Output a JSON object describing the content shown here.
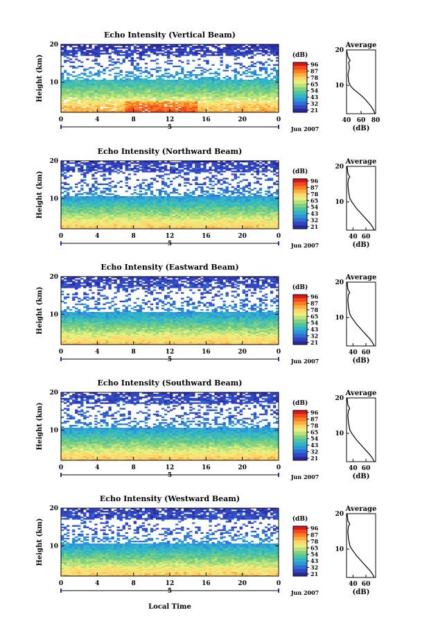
{
  "colorbar": {
    "unit": "(dB)",
    "ticks": [
      "96",
      "87",
      "78",
      "65",
      "54",
      "43",
      "32",
      "21"
    ],
    "colors": [
      "#d7191c",
      "#f24a1e",
      "#f97b22",
      "#fdae3c",
      "#fed66b",
      "#e9ef7e",
      "#b7e27c",
      "#7fd07f",
      "#4fc3a2",
      "#2fb5c8",
      "#2d95d8",
      "#2e6fd6",
      "#3147c4",
      "#2a2aa0"
    ]
  },
  "x_axis": {
    "ticks": [
      "0",
      "4",
      "8",
      "12",
      "16",
      "20",
      "0"
    ],
    "day_label": "5",
    "month_label": "Jun 2007",
    "xlabel": "Local Time"
  },
  "panels": [
    {
      "title": "Echo Intensity (Vertical Beam)",
      "ylabel": "Height (km)",
      "yticks": [
        "20",
        "10"
      ],
      "avg": {
        "title": "Average",
        "xticks": [
          "40",
          "60",
          "80"
        ],
        "xlabel": "(dB)",
        "yticks": [
          "20",
          "10"
        ]
      }
    },
    {
      "title": "Echo Intensity (Northward Beam)",
      "ylabel": "Height (km)",
      "yticks": [
        "20",
        "10"
      ],
      "avg": {
        "title": "Average",
        "xticks": [
          "40",
          "60"
        ],
        "xlabel": "(dB)",
        "yticks": [
          "20",
          "10"
        ]
      }
    },
    {
      "title": "Echo Intensity (Eastward Beam)",
      "ylabel": "Height (km)",
      "yticks": [
        "20",
        "10"
      ],
      "avg": {
        "title": "Average",
        "xticks": [
          "40",
          "60"
        ],
        "xlabel": "(dB)",
        "yticks": [
          "20",
          "10"
        ]
      }
    },
    {
      "title": "Echo Intensity (Southward Beam)",
      "ylabel": "Height (km)",
      "yticks": [
        "20",
        "10"
      ],
      "avg": {
        "title": "Average",
        "xticks": [
          "40",
          "60"
        ],
        "xlabel": "(dB)",
        "yticks": [
          "20",
          "10"
        ]
      }
    },
    {
      "title": "Echo Intensity (Westward Beam)",
      "ylabel": "Height (km)",
      "yticks": [
        "20",
        "10"
      ],
      "avg": {
        "title": "Average",
        "xticks": [
          "40",
          "60"
        ],
        "xlabel": "(dB)",
        "yticks": [
          "20",
          "10"
        ]
      }
    }
  ],
  "chart_data": [
    {
      "type": "heatmap",
      "title": "Echo Intensity (Vertical Beam)",
      "ylabel": "Height (km)",
      "xlabel": "Local Time",
      "x_range_hours": [
        0,
        24
      ],
      "y_range_km": [
        2,
        20
      ],
      "colorbar_range_db": [
        21,
        96
      ],
      "profile_db_by_height": {
        "2": 78,
        "4": 72,
        "6": 62,
        "8": 54,
        "10": 47,
        "12": 40,
        "14": 34,
        "16": 30,
        "18": 28,
        "20": 25
      }
    },
    {
      "type": "line",
      "title": "Average",
      "xlabel": "(dB)",
      "xlim": [
        40,
        80
      ],
      "ylim": [
        2,
        20
      ],
      "x": [
        79,
        77,
        74,
        70,
        66,
        61,
        55,
        49,
        45,
        43,
        42,
        44,
        43,
        45,
        42,
        40
      ],
      "y": [
        2,
        3,
        4,
        5,
        6,
        7,
        8,
        9,
        10,
        11,
        13,
        15,
        16.5,
        17,
        18,
        20
      ]
    },
    {
      "type": "heatmap",
      "title": "Echo Intensity (Northward Beam)",
      "ylabel": "Height (km)",
      "xlabel": "Local Time",
      "x_range_hours": [
        0,
        24
      ],
      "y_range_km": [
        2,
        20
      ],
      "colorbar_range_db": [
        21,
        96
      ],
      "profile_db_by_height": {
        "2": 74,
        "4": 68,
        "6": 58,
        "8": 50,
        "10": 42,
        "12": 36,
        "14": 32,
        "16": 30,
        "18": 29,
        "20": 27
      }
    },
    {
      "type": "line",
      "title": "Average",
      "xlabel": "(dB)",
      "xlim": [
        30,
        75
      ],
      "ylim": [
        2,
        20
      ],
      "x": [
        73,
        70,
        66,
        61,
        56,
        51,
        46,
        42,
        38,
        35,
        33,
        32,
        33,
        35,
        32,
        31
      ],
      "y": [
        2,
        3,
        4,
        5,
        6,
        7,
        8,
        9,
        10,
        11,
        13,
        15,
        16.5,
        17,
        18,
        20
      ]
    },
    {
      "type": "heatmap",
      "title": "Echo Intensity (Eastward Beam)",
      "ylabel": "Height (km)",
      "xlabel": "Local Time",
      "x_range_hours": [
        0,
        24
      ],
      "y_range_km": [
        2,
        20
      ],
      "colorbar_range_db": [
        21,
        96
      ],
      "profile_db_by_height": {
        "2": 74,
        "4": 68,
        "6": 58,
        "8": 50,
        "10": 42,
        "12": 36,
        "14": 32,
        "16": 30,
        "18": 29,
        "20": 27
      }
    },
    {
      "type": "line",
      "title": "Average",
      "xlabel": "(dB)",
      "xlim": [
        30,
        75
      ],
      "ylim": [
        2,
        20
      ],
      "x": [
        73,
        70,
        66,
        61,
        56,
        51,
        46,
        42,
        38,
        35,
        33,
        32,
        33,
        35,
        32,
        31
      ],
      "y": [
        2,
        3,
        4,
        5,
        6,
        7,
        8,
        9,
        10,
        11,
        13,
        15,
        16.5,
        17,
        18,
        20
      ]
    },
    {
      "type": "heatmap",
      "title": "Echo Intensity (Southward Beam)",
      "ylabel": "Height (km)",
      "xlabel": "Local Time",
      "x_range_hours": [
        0,
        24
      ],
      "y_range_km": [
        2,
        20
      ],
      "colorbar_range_db": [
        21,
        96
      ],
      "profile_db_by_height": {
        "2": 74,
        "4": 68,
        "6": 58,
        "8": 50,
        "10": 42,
        "12": 36,
        "14": 32,
        "16": 30,
        "18": 29,
        "20": 27
      }
    },
    {
      "type": "line",
      "title": "Average",
      "xlabel": "(dB)",
      "xlim": [
        30,
        75
      ],
      "ylim": [
        2,
        20
      ],
      "x": [
        73,
        70,
        66,
        61,
        56,
        51,
        46,
        42,
        38,
        35,
        33,
        32,
        33,
        35,
        32,
        31
      ],
      "y": [
        2,
        3,
        4,
        5,
        6,
        7,
        8,
        9,
        10,
        11,
        13,
        15,
        16.5,
        17,
        18,
        20
      ]
    },
    {
      "type": "heatmap",
      "title": "Echo Intensity (Westward Beam)",
      "ylabel": "Height (km)",
      "xlabel": "Local Time",
      "x_range_hours": [
        0,
        24
      ],
      "y_range_km": [
        2,
        20
      ],
      "colorbar_range_db": [
        21,
        96
      ],
      "profile_db_by_height": {
        "2": 74,
        "4": 68,
        "6": 58,
        "8": 50,
        "10": 42,
        "12": 36,
        "14": 32,
        "16": 30,
        "18": 29,
        "20": 27
      }
    },
    {
      "type": "line",
      "title": "Average",
      "xlabel": "(dB)",
      "xlim": [
        30,
        75
      ],
      "ylim": [
        2,
        20
      ],
      "x": [
        73,
        70,
        66,
        61,
        56,
        51,
        46,
        42,
        38,
        35,
        33,
        32,
        33,
        35,
        32,
        31
      ],
      "y": [
        2,
        3,
        4,
        5,
        6,
        7,
        8,
        9,
        10,
        11,
        13,
        15,
        16.5,
        17,
        18,
        20
      ]
    }
  ]
}
